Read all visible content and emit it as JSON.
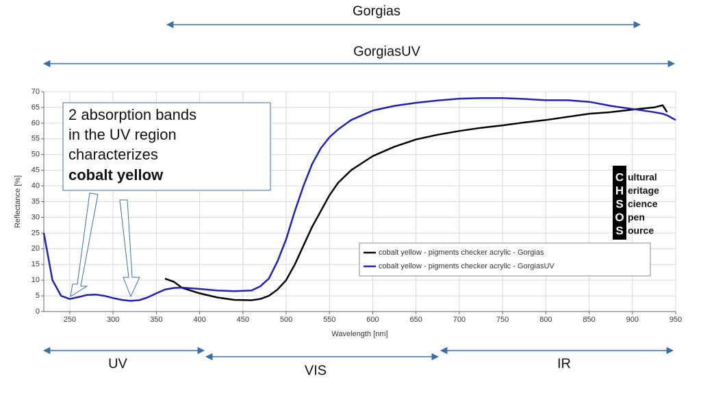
{
  "chart_data": {
    "type": "line",
    "x_label": "Wavelength [nm]",
    "y_label": "Reflectance [%]",
    "x": [
      220,
      230,
      240,
      250,
      260,
      270,
      280,
      290,
      300,
      310,
      320,
      330,
      340,
      350,
      360,
      370,
      380,
      400,
      420,
      440,
      460,
      470,
      480,
      490,
      500,
      510,
      520,
      530,
      540,
      550,
      560,
      575,
      600,
      625,
      650,
      675,
      700,
      725,
      750,
      775,
      800,
      825,
      850,
      875,
      900,
      925,
      935,
      940,
      950
    ],
    "series": [
      {
        "name": "cobalt yellow - pigments checker acrylic - Gorgias",
        "color": "#000000",
        "values": [
          null,
          null,
          null,
          null,
          null,
          null,
          null,
          null,
          null,
          null,
          null,
          null,
          null,
          null,
          10.5,
          9.5,
          7.5,
          5.8,
          4.5,
          3.7,
          3.6,
          4,
          5,
          7,
          10,
          15,
          21,
          27,
          32,
          37,
          41,
          45,
          49.5,
          52.5,
          54.8,
          56.3,
          57.5,
          58.5,
          59.3,
          60.2,
          61,
          62,
          63,
          63.5,
          64.3,
          65,
          65.7,
          63.5,
          null
        ]
      },
      {
        "name": "cobalt yellow - pigments checker acrylic - GorgiasUV",
        "color": "#1f1fbf",
        "values": [
          25,
          10,
          5,
          4,
          4.6,
          5.3,
          5.4,
          5,
          4.3,
          3.7,
          3.4,
          3.6,
          4.5,
          5.8,
          7,
          7.5,
          7.6,
          7.2,
          6.7,
          6.5,
          6.7,
          8,
          10.5,
          16,
          23,
          32,
          40,
          47,
          52,
          55.5,
          58,
          61,
          64,
          65.5,
          66.5,
          67.2,
          67.8,
          68,
          68,
          67.7,
          67.3,
          67.3,
          66.8,
          65.5,
          64.5,
          63.5,
          63,
          62.5,
          61
        ]
      }
    ],
    "xlim": [
      220,
      950
    ],
    "ylim": [
      0,
      70
    ],
    "xticks": [
      250,
      300,
      350,
      400,
      450,
      500,
      550,
      600,
      650,
      700,
      750,
      800,
      850,
      900,
      950
    ],
    "yticks": [
      0,
      5,
      10,
      15,
      20,
      25,
      30,
      35,
      40,
      45,
      50,
      55,
      60,
      65,
      70
    ],
    "grid": true,
    "legend": "lower right",
    "ranges": [
      "Gorgias",
      "GorgiasUV",
      "UV",
      "VIS",
      "IR"
    ],
    "callout": [
      "2 absorption bands",
      "in the UV region",
      "characterizes",
      "cobalt yellow"
    ],
    "logo": {
      "letters": [
        "C",
        "H",
        "S",
        "O",
        "S"
      ],
      "words": [
        "ultural",
        "eritage",
        "cience",
        "pen",
        "ource"
      ]
    }
  }
}
